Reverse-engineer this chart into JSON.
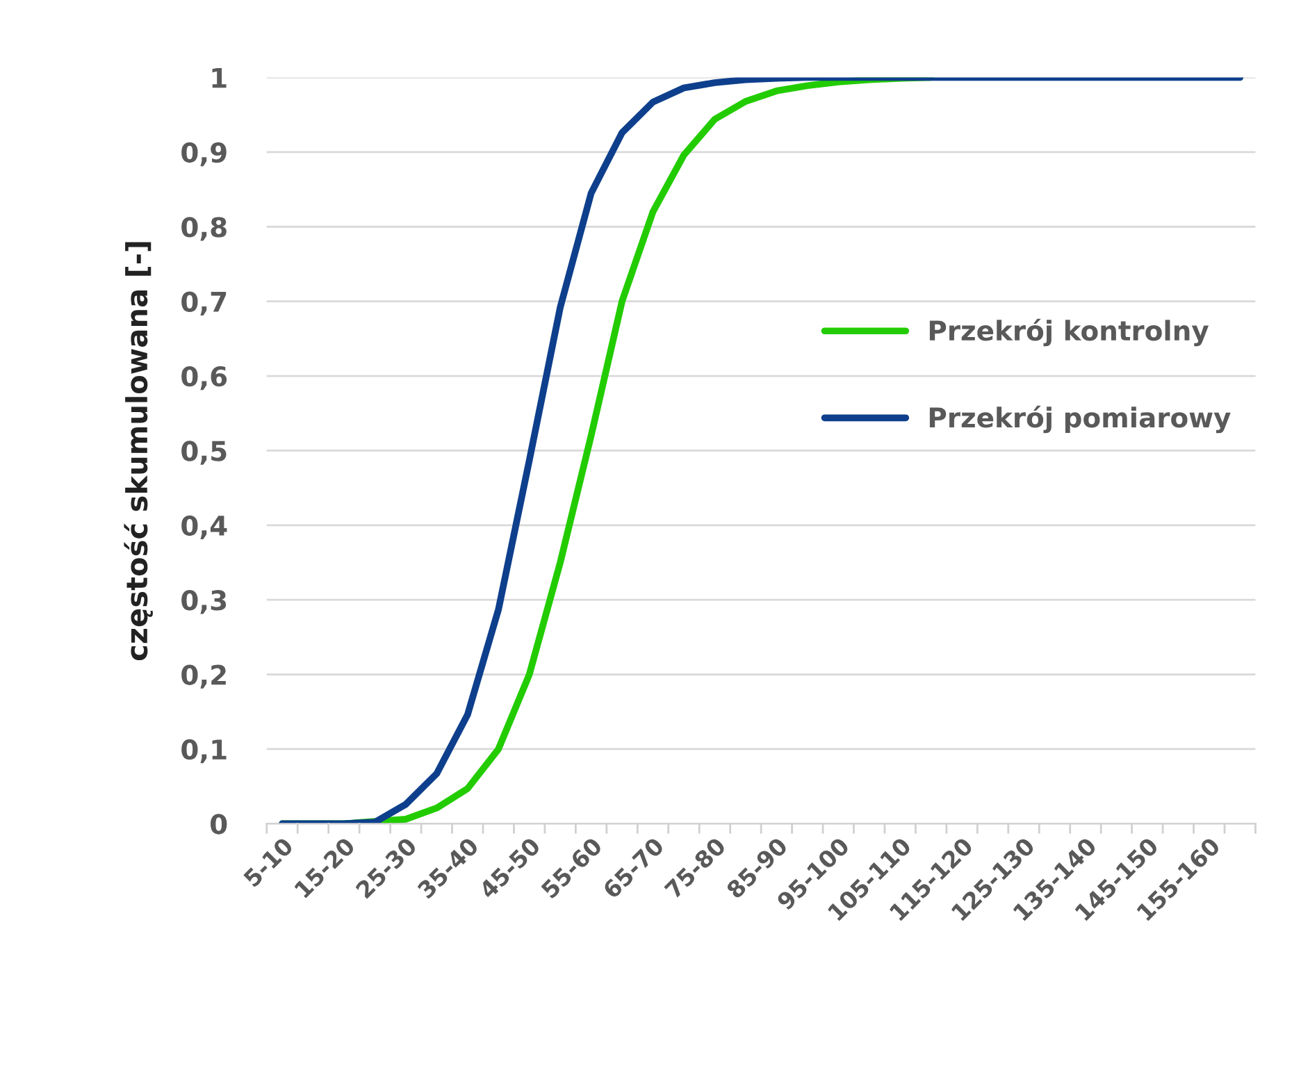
{
  "chart_data": {
    "type": "line",
    "ylabel": "częstość skumulowana [-]",
    "categories": [
      "5-10",
      null,
      "15-20",
      null,
      "25-30",
      null,
      "35-40",
      null,
      "45-50",
      null,
      "55-60",
      null,
      "65-70",
      null,
      "75-80",
      null,
      "85-90",
      null,
      "95-100",
      null,
      "105-110",
      null,
      "115-120",
      null,
      "125-130",
      null,
      "135-140",
      null,
      "145-150",
      null,
      "155-160",
      null
    ],
    "series": [
      {
        "name": "Przekrój kontrolny",
        "color": "#22cc00",
        "values": [
          0,
          0,
          0,
          0.003,
          0.006,
          0.021,
          0.047,
          0.1,
          0.2,
          0.35,
          0.52,
          0.7,
          0.82,
          0.896,
          0.944,
          0.968,
          0.982,
          0.989,
          0.994,
          0.997,
          0.999,
          1,
          null,
          null,
          null,
          null,
          null,
          null,
          null,
          null,
          null,
          null
        ]
      },
      {
        "name": "Przekrój pomiarowy",
        "color": "#0e3f8c",
        "values": [
          0,
          0,
          0,
          0.002,
          0.026,
          0.067,
          0.146,
          0.287,
          0.487,
          0.692,
          0.845,
          0.926,
          0.967,
          0.986,
          0.993,
          0.997,
          0.999,
          1,
          1,
          1,
          1,
          1,
          1,
          1,
          1,
          1,
          1,
          1,
          1,
          1,
          1,
          1
        ]
      }
    ],
    "ylim": [
      0,
      1
    ],
    "yticks": [
      {
        "value": 0,
        "label": "0"
      },
      {
        "value": 0.1,
        "label": "0,1"
      },
      {
        "value": 0.2,
        "label": "0,2"
      },
      {
        "value": 0.3,
        "label": "0,3"
      },
      {
        "value": 0.4,
        "label": "0,4"
      },
      {
        "value": 0.5,
        "label": "0,5"
      },
      {
        "value": 0.6,
        "label": "0,6"
      },
      {
        "value": 0.7,
        "label": "0,7"
      },
      {
        "value": 0.8,
        "label": "0,8"
      },
      {
        "value": 0.9,
        "label": "0,9"
      },
      {
        "value": 1,
        "label": "1"
      }
    ],
    "grid": "y",
    "legend": "right",
    "marker": "none",
    "line_style": "solid"
  }
}
